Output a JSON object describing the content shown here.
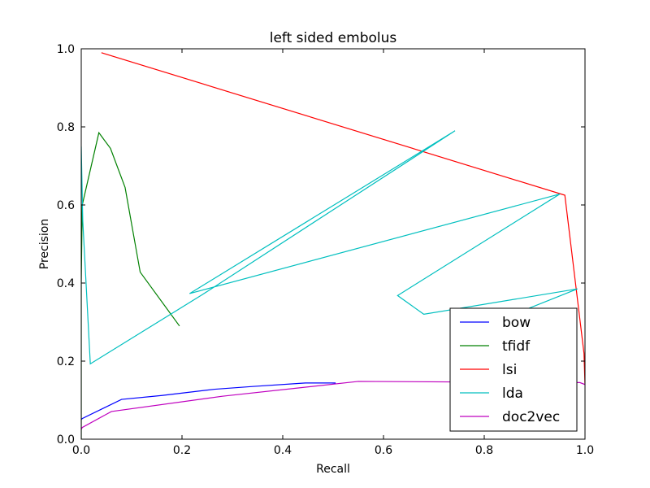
{
  "chart_data": {
    "type": "line",
    "title": "left sided embolus",
    "xlabel": "Recall",
    "ylabel": "Precision",
    "xlim": [
      0.0,
      1.0
    ],
    "ylim": [
      0.0,
      1.0
    ],
    "xticks": [
      "0.0",
      "0.2",
      "0.4",
      "0.6",
      "0.8",
      "1.0"
    ],
    "yticks": [
      "0.0",
      "0.2",
      "0.4",
      "0.6",
      "0.8",
      "1.0"
    ],
    "grid": false,
    "legend_position": "lower right",
    "series": [
      {
        "name": "bow",
        "color": "#0000ff",
        "x": [
          0.0,
          0.002,
          0.08,
          0.16,
          0.265,
          0.34,
          0.445,
          0.505
        ],
        "y": [
          0.05,
          0.053,
          0.102,
          0.112,
          0.128,
          0.135,
          0.144,
          0.144
        ]
      },
      {
        "name": "tfidf",
        "color": "#008000",
        "x": [
          0.0,
          0.0,
          0.002,
          0.035,
          0.058,
          0.087,
          0.117,
          0.195
        ],
        "y": [
          0.0,
          0.4,
          0.6,
          0.785,
          0.745,
          0.645,
          0.428,
          0.29
        ]
      },
      {
        "name": "lsi",
        "color": "#ff0000",
        "x": [
          0.04,
          0.96,
          0.998,
          1.0
        ],
        "y": [
          0.99,
          0.625,
          0.22,
          0.14
        ]
      },
      {
        "name": "lda",
        "color": "#00bfbf",
        "x": [
          0.0,
          0.003,
          0.018,
          0.24,
          0.742,
          0.215,
          0.95,
          0.628,
          0.68,
          0.985,
          0.82
        ],
        "y": [
          0.75,
          0.56,
          0.193,
          0.37,
          0.79,
          0.373,
          0.628,
          0.368,
          0.32,
          0.385,
          0.3
        ]
      },
      {
        "name": "doc2vec",
        "color": "#bf00bf",
        "x": [
          0.0,
          0.002,
          0.06,
          0.28,
          0.55,
          0.99,
          1.0
        ],
        "y": [
          0.025,
          0.03,
          0.071,
          0.11,
          0.148,
          0.145,
          0.14
        ]
      }
    ]
  }
}
